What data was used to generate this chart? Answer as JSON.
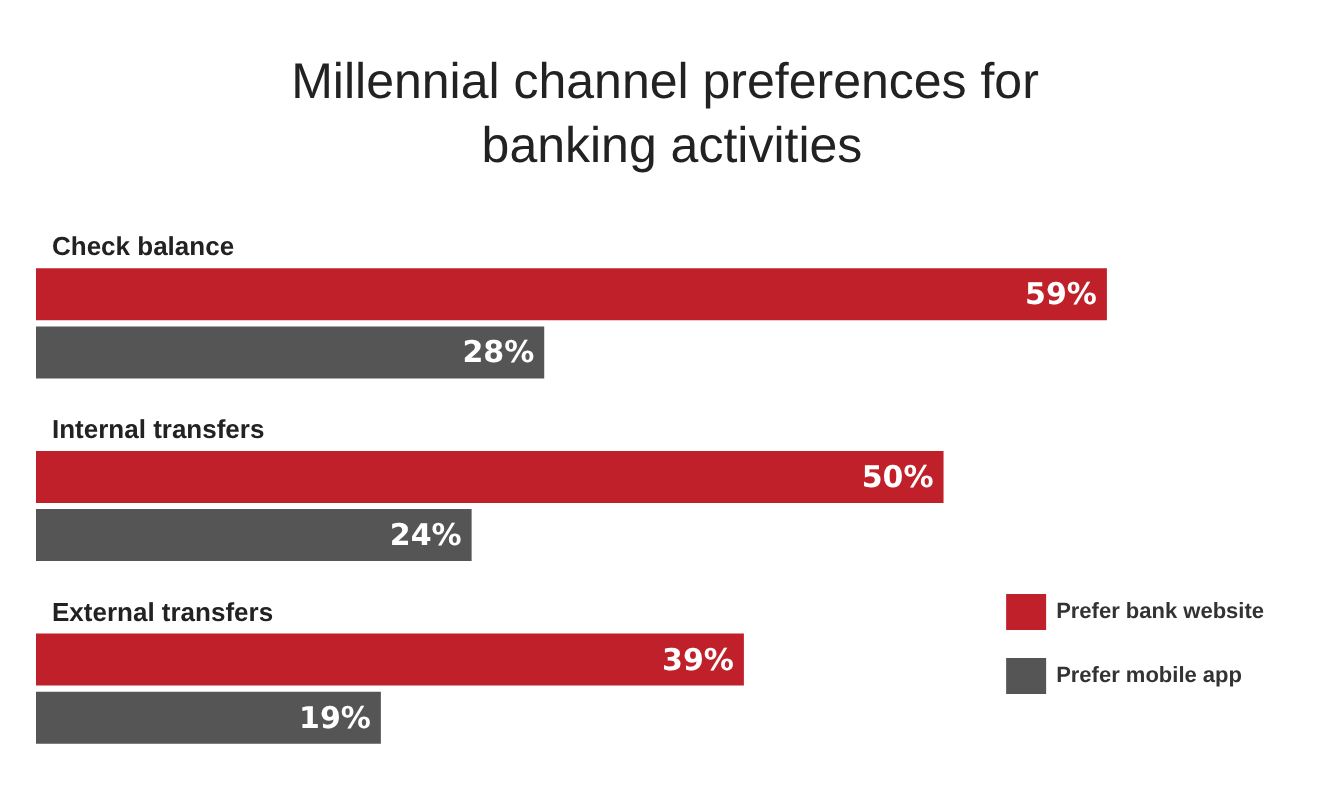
{
  "chart_data": {
    "type": "bar",
    "orientation": "horizontal",
    "title": "Millennial channel preferences for banking activities",
    "categories": [
      "Check balance",
      "Internal transfers",
      "External transfers"
    ],
    "legend": "bottom right",
    "series": [
      {
        "name": "Prefer bank website",
        "color": "#c0202a",
        "values": [
          59,
          50,
          39
        ],
        "value_labels": [
          "59%",
          "50%",
          "39%"
        ]
      },
      {
        "name": "Prefer mobile app",
        "color": "#555555",
        "values": [
          28,
          24,
          19
        ],
        "value_labels": [
          "28%",
          "24%",
          "19%"
        ]
      }
    ]
  }
}
